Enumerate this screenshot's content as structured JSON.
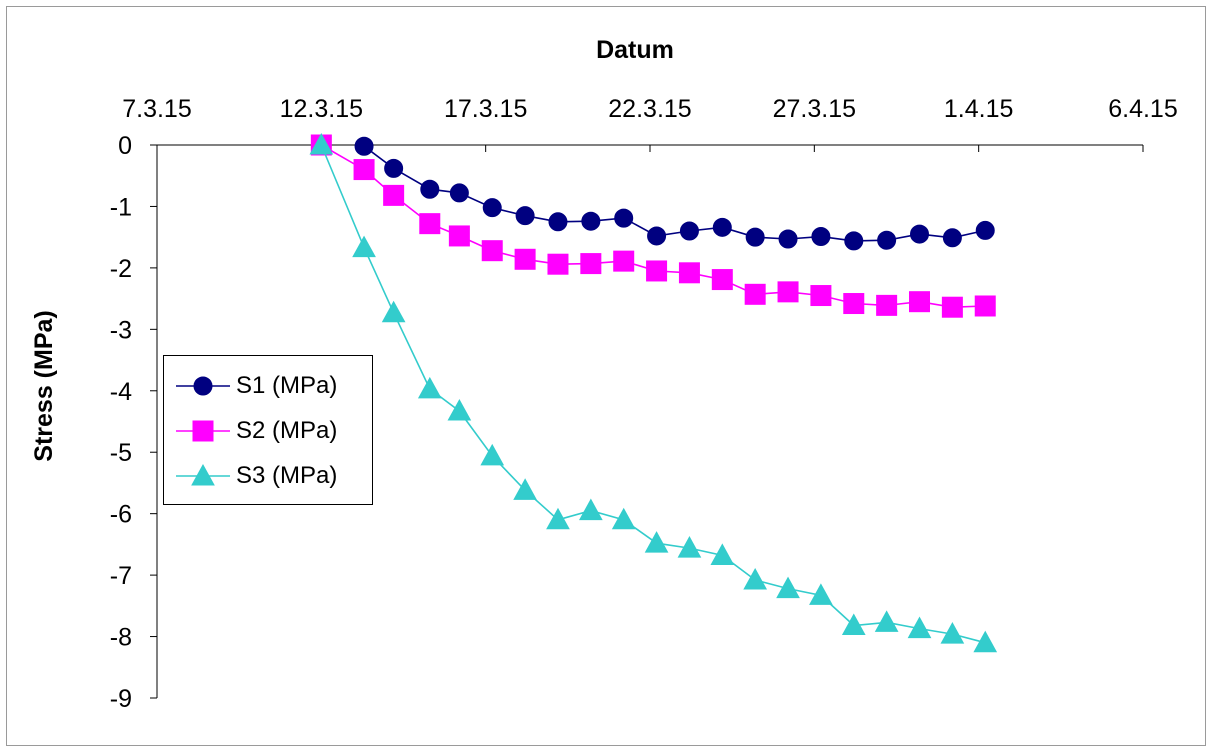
{
  "chart_data": {
    "type": "line",
    "title": "",
    "xlabel": "Datum",
    "ylabel": "Stress (MPa)",
    "x_tick_labels": [
      "7.3.15",
      "12.3.15",
      "17.3.15",
      "22.3.15",
      "27.3.15",
      "1.4.15",
      "6.4.15"
    ],
    "x_tick_dates": [
      "2015-03-07",
      "2015-03-12",
      "2015-03-17",
      "2015-03-22",
      "2015-03-27",
      "2015-04-01",
      "2015-04-06"
    ],
    "xlim": [
      "2015-03-07",
      "2015-04-06"
    ],
    "x_axis_position": "top",
    "y_tick_labels": [
      "0",
      "-1",
      "-2",
      "-3",
      "-4",
      "-5",
      "-6",
      "-7",
      "-8",
      "-9"
    ],
    "ylim": [
      -9,
      0
    ],
    "grid": false,
    "legend_position": "left",
    "series": [
      {
        "name": "S1 (MPa)",
        "color": "#000080",
        "marker": "circle",
        "points": [
          [
            "2015-03-13.3",
            -0.02
          ],
          [
            "2015-03-14.2",
            -0.38
          ],
          [
            "2015-03-15.3",
            -0.72
          ],
          [
            "2015-03-16.2",
            -0.78
          ],
          [
            "2015-03-17.2",
            -1.02
          ],
          [
            "2015-03-18.2",
            -1.15
          ],
          [
            "2015-03-19.2",
            -1.25
          ],
          [
            "2015-03-20.2",
            -1.24
          ],
          [
            "2015-03-21.2",
            -1.19
          ],
          [
            "2015-03-22.2",
            -1.48
          ],
          [
            "2015-03-23.2",
            -1.4
          ],
          [
            "2015-03-24.2",
            -1.34
          ],
          [
            "2015-03-25.2",
            -1.5
          ],
          [
            "2015-03-26.2",
            -1.53
          ],
          [
            "2015-03-27.2",
            -1.49
          ],
          [
            "2015-03-28.2",
            -1.56
          ],
          [
            "2015-03-29.2",
            -1.55
          ],
          [
            "2015-03-30.2",
            -1.45
          ],
          [
            "2015-03-31.2",
            -1.51
          ],
          [
            "2015-04-01.2",
            -1.39
          ]
        ]
      },
      {
        "name": "S2 (MPa)",
        "color": "#ff00ff",
        "marker": "square",
        "points": [
          [
            "2015-03-12",
            0.0
          ],
          [
            "2015-03-13.3",
            -0.4
          ],
          [
            "2015-03-14.2",
            -0.82
          ],
          [
            "2015-03-15.3",
            -1.28
          ],
          [
            "2015-03-16.2",
            -1.48
          ],
          [
            "2015-03-17.2",
            -1.72
          ],
          [
            "2015-03-18.2",
            -1.86
          ],
          [
            "2015-03-19.2",
            -1.94
          ],
          [
            "2015-03-20.2",
            -1.93
          ],
          [
            "2015-03-21.2",
            -1.89
          ],
          [
            "2015-03-22.2",
            -2.05
          ],
          [
            "2015-03-23.2",
            -2.08
          ],
          [
            "2015-03-24.2",
            -2.19
          ],
          [
            "2015-03-25.2",
            -2.43
          ],
          [
            "2015-03-26.2",
            -2.39
          ],
          [
            "2015-03-27.2",
            -2.45
          ],
          [
            "2015-03-28.2",
            -2.58
          ],
          [
            "2015-03-29.2",
            -2.61
          ],
          [
            "2015-03-30.2",
            -2.55
          ],
          [
            "2015-03-31.2",
            -2.64
          ],
          [
            "2015-04-01.2",
            -2.62
          ]
        ]
      },
      {
        "name": "S3 (MPa)",
        "color": "#33cccc",
        "marker": "triangle",
        "points": [
          [
            "2015-03-12",
            0.0
          ],
          [
            "2015-03-13.3",
            -1.67
          ],
          [
            "2015-03-14.2",
            -2.73
          ],
          [
            "2015-03-15.3",
            -3.97
          ],
          [
            "2015-03-16.2",
            -4.33
          ],
          [
            "2015-03-17.2",
            -5.06
          ],
          [
            "2015-03-18.2",
            -5.62
          ],
          [
            "2015-03-19.2",
            -6.1
          ],
          [
            "2015-03-20.2",
            -5.95
          ],
          [
            "2015-03-21.2",
            -6.1
          ],
          [
            "2015-03-22.2",
            -6.48
          ],
          [
            "2015-03-23.2",
            -6.56
          ],
          [
            "2015-03-24.2",
            -6.68
          ],
          [
            "2015-03-25.2",
            -7.08
          ],
          [
            "2015-03-26.2",
            -7.22
          ],
          [
            "2015-03-27.2",
            -7.33
          ],
          [
            "2015-03-28.2",
            -7.82
          ],
          [
            "2015-03-29.2",
            -7.77
          ],
          [
            "2015-03-30.2",
            -7.87
          ],
          [
            "2015-03-31.2",
            -7.96
          ],
          [
            "2015-04-01.2",
            -8.1
          ]
        ]
      }
    ]
  }
}
